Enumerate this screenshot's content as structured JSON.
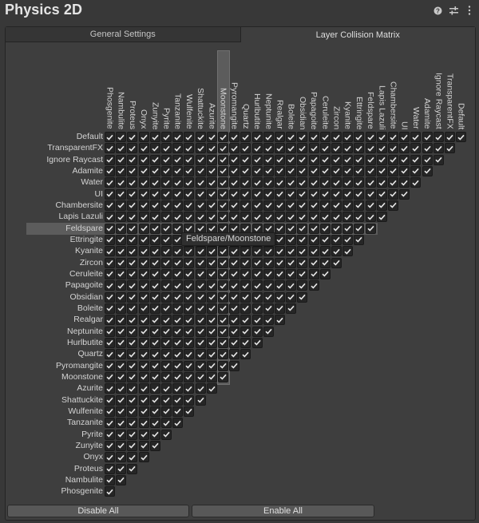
{
  "header": {
    "title": "Physics 2D",
    "icons": [
      "help-icon",
      "settings-sliders-icon",
      "more-vert-icon"
    ]
  },
  "tabs": [
    {
      "label": "General Settings",
      "active": false
    },
    {
      "label": "Layer Collision Matrix",
      "active": true
    }
  ],
  "matrix": {
    "rows": [
      "Default",
      "TransparentFX",
      "Ignore Raycast",
      "Adamite",
      "Water",
      "UI",
      "Chambersite",
      "Lapis Lazuli",
      "Feldspare",
      "Ettringite",
      "Kyanite",
      "Zircon",
      "Ceruleite",
      "Papagoite",
      "Obsidian",
      "Boleite",
      "Realgar",
      "Neptunite",
      "Hurlbutite",
      "Quartz",
      "Pyromangite",
      "Moonstone",
      "Azurite",
      "Shattuckite",
      "Wulfenite",
      "Tanzanite",
      "Pyrite",
      "Zunyite",
      "Onyx",
      "Proteus",
      "Nambulite",
      "Phosgenite"
    ],
    "columns": [
      "Phosgenite",
      "Nambulite",
      "Proteus",
      "Onyx",
      "Zunyite",
      "Pyrite",
      "Tanzanite",
      "Wulfenite",
      "Shattuckite",
      "Azurite",
      "Moonstone",
      "Pyromangite",
      "Quartz",
      "Hurlbutite",
      "Neptunite",
      "Realgar",
      "Boleite",
      "Obsidian",
      "Papagoite",
      "Ceruleite",
      "Zircon",
      "Kyanite",
      "Ettringite",
      "Feldspare",
      "Lapis Lazuli",
      "Chambersite",
      "UI",
      "Water",
      "Adamite",
      "Ignore Raycast",
      "TransparentFX",
      "Default"
    ],
    "all_checked": true,
    "highlighted_row": "Feldspare",
    "highlighted_column": "Moonstone",
    "tooltip": "Feldspare/Moonstone"
  },
  "buttons": {
    "disable_all": "Disable All",
    "enable_all": "Enable All"
  },
  "colors": {
    "background": "#383838",
    "panel": "#3e3e3e",
    "cell": "#262626",
    "highlight": "#5c5c5c",
    "button": "#585858"
  }
}
